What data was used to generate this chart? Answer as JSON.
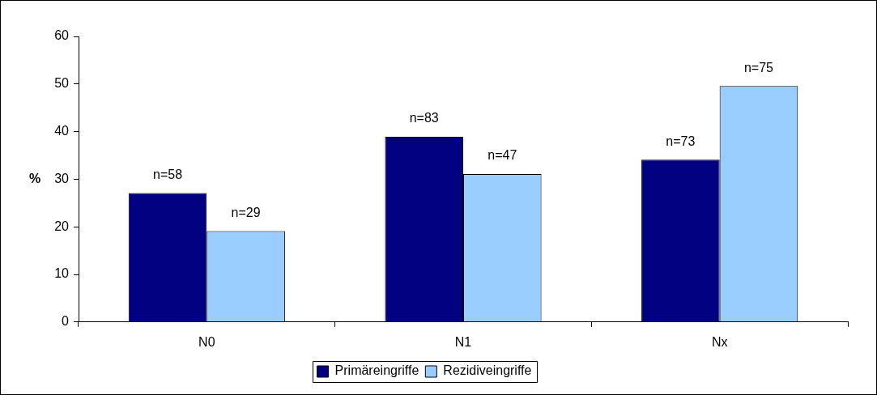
{
  "chart_data": {
    "type": "bar",
    "ylabel": "%",
    "categories": [
      "N0",
      "N1",
      "Nx"
    ],
    "series": [
      {
        "name": "Primäreingriffe",
        "color": "#000080",
        "values": [
          27.1,
          38.9,
          34.1
        ]
      },
      {
        "name": "Rezidiveingriffe",
        "color": "#99ccff",
        "values": [
          19.1,
          31.1,
          49.6
        ]
      }
    ],
    "annotations": [
      {
        "text": "n=58",
        "x": "N0",
        "y": 27.1
      },
      {
        "text": "n=29",
        "x": "N0",
        "y": 19.1
      },
      {
        "text": "n=83",
        "x": "N1",
        "y": 38.9
      },
      {
        "text": "n=47",
        "x": "N1",
        "y": 31.1
      },
      {
        "text": "n=73",
        "x": "Nx",
        "y": 34.1
      },
      {
        "text": "n=75",
        "x": "Nx",
        "y": 49.6
      }
    ],
    "ylim": [
      0,
      60
    ],
    "yticks": [
      0,
      10,
      20,
      30,
      40,
      50,
      60
    ],
    "grid": false,
    "legend": "bottom"
  }
}
